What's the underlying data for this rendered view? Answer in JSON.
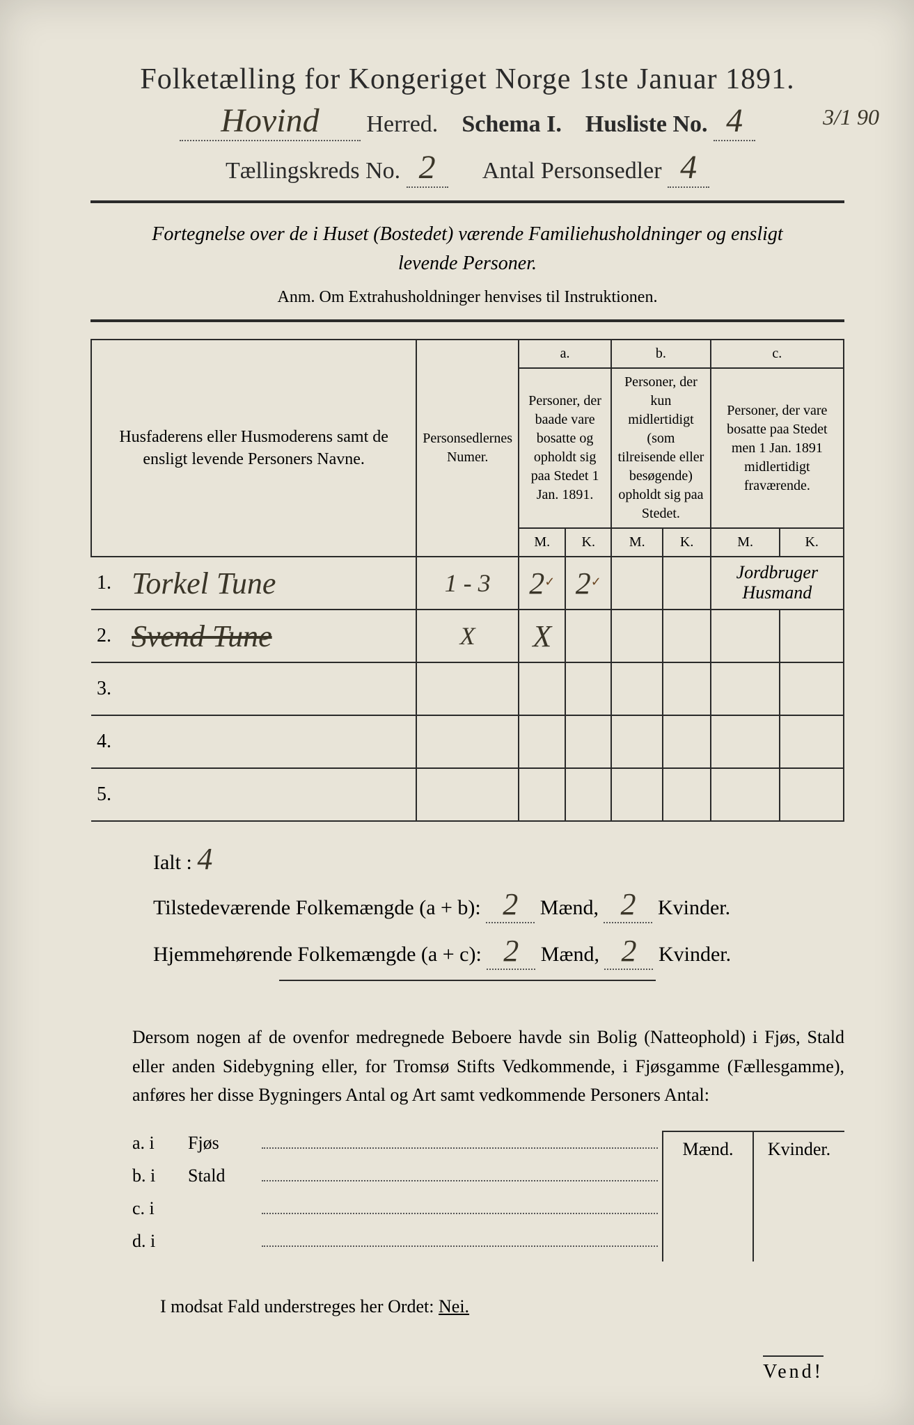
{
  "header": {
    "title": "Folketælling for Kongeriget Norge 1ste Januar 1891.",
    "herred_name": "Hovind",
    "herred_label": "Herred.",
    "schema_label": "Schema I.",
    "husliste_label": "Husliste No.",
    "husliste_no": "4",
    "margin_date": "3/1 90",
    "kreds_label": "Tællingskreds No.",
    "kreds_no": "2",
    "antal_label": "Antal Personsedler",
    "antal_no": "4"
  },
  "subtitle": {
    "line1": "Fortegnelse over de i Huset (Bostedet) værende Familiehusholdninger og ensligt",
    "line2": "levende Personer.",
    "anm": "Anm.  Om Extrahusholdninger henvises til Instruktionen."
  },
  "table": {
    "col_names": "Husfaderens eller Husmoderens samt de ensligt levende Personers Navne.",
    "col_personsedler": "Personsedlernes Numer.",
    "col_a_label": "a.",
    "col_a": "Personer, der baade vare bosatte og opholdt sig paa Stedet 1 Jan. 1891.",
    "col_b_label": "b.",
    "col_b": "Personer, der kun midlertidigt (som tilreisende eller besøgende) opholdt sig paa Stedet.",
    "col_c_label": "c.",
    "col_c": "Personer, der vare bosatte paa Stedet men 1 Jan. 1891 midlertidigt fraværende.",
    "mk_m": "M.",
    "mk_k": "K.",
    "rows": [
      {
        "n": "1.",
        "name": "Torkel Tune",
        "name_strike": false,
        "pnum": "1 - 3",
        "a_m": "2",
        "a_m_tick": "✓",
        "a_k": "2",
        "a_k_tick": "✓",
        "b_m": "",
        "b_k": "",
        "c_m": "",
        "c_k": "",
        "c_note": "Jordbruger Husmand"
      },
      {
        "n": "2.",
        "name": "Svend Tune",
        "name_strike": true,
        "pnum": "X",
        "a_m": "X",
        "a_k": "",
        "b_m": "",
        "b_k": "",
        "c_m": "",
        "c_k": "",
        "c_note": ""
      },
      {
        "n": "3.",
        "name": "",
        "pnum": "",
        "a_m": "",
        "a_k": "",
        "b_m": "",
        "b_k": "",
        "c_m": "",
        "c_k": "",
        "c_note": ""
      },
      {
        "n": "4.",
        "name": "",
        "pnum": "",
        "a_m": "",
        "a_k": "",
        "b_m": "",
        "b_k": "",
        "c_m": "",
        "c_k": "",
        "c_note": ""
      },
      {
        "n": "5.",
        "name": "",
        "pnum": "",
        "a_m": "",
        "a_k": "",
        "b_m": "",
        "b_k": "",
        "c_m": "",
        "c_k": "",
        "c_note": ""
      }
    ]
  },
  "totals": {
    "ialt_label": "Ialt :",
    "ialt": "4",
    "tilstede_label": "Tilstedeværende Folkemængde (a + b):",
    "hjemme_label": "Hjemmehørende Folkemængde (a + c):",
    "maend_label": "Mænd,",
    "kvinder_label": "Kvinder.",
    "tilstede_m": "2",
    "tilstede_k": "2",
    "hjemme_m": "2",
    "hjemme_k": "2"
  },
  "paragraph": "Dersom nogen af de ovenfor medregnede Beboere havde sin Bolig (Natteophold) i Fjøs, Stald eller anden Sidebygning eller, for Tromsø Stifts Vedkommende, i Fjøsgamme (Fællesgamme), anføres her disse Bygningers Antal og Art samt vedkommende Personers Antal:",
  "sidebuild": {
    "header_m": "Mænd.",
    "header_k": "Kvinder.",
    "rows": [
      {
        "pre": "a.  i",
        "label": "Fjøs"
      },
      {
        "pre": "b.  i",
        "label": "Stald"
      },
      {
        "pre": "c.  i",
        "label": ""
      },
      {
        "pre": "d.  i",
        "label": ""
      }
    ]
  },
  "nei_line": "I modsat Fald understreges her Ordet: ",
  "nei_word": "Nei.",
  "vend": "Vend!",
  "colors": {
    "paper": "#e8e4d8",
    "ink": "#2a2a2a",
    "handwriting": "#3a3528"
  }
}
